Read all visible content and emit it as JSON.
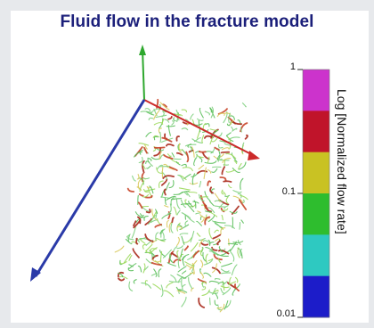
{
  "title": "Fluid flow in the fracture model",
  "colorbar": {
    "label": "Log [Normalized flow rate]",
    "ticks": [
      "1",
      "0.1",
      "0.01"
    ],
    "colors": [
      "#cc33cc",
      "#c0142a",
      "#c9c223",
      "#2ebd2e",
      "#2ec9c1",
      "#1c1cc9"
    ]
  },
  "axes": {
    "x_color": "#cc2a2a",
    "y_color": "#2ea82e",
    "z_color": "#2a3aa8"
  },
  "network_colors": [
    "#7fd07f",
    "#5cbf5c",
    "#9cd95c",
    "#d9c95c",
    "#c8462a",
    "#a82a1c"
  ]
}
